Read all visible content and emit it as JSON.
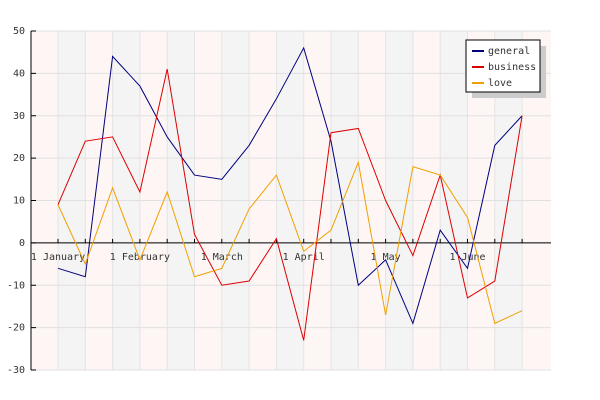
{
  "chart_data": {
    "type": "line",
    "categories": [
      "1 January",
      null,
      null,
      "1 February",
      null,
      null,
      "1 March",
      null,
      null,
      "1 April",
      null,
      null,
      "1 May",
      null,
      null,
      "1 June",
      null,
      null
    ],
    "series": [
      {
        "name": "general",
        "color": "#000080",
        "values": [
          -6,
          -8,
          44,
          37,
          25,
          16,
          15,
          23,
          34,
          46,
          24,
          -10,
          -4,
          -19,
          3,
          -6,
          23,
          30
        ]
      },
      {
        "name": "business",
        "color": "#dd0000",
        "values": [
          9,
          24,
          25,
          12,
          41,
          2,
          -10,
          -9,
          1,
          -23,
          26,
          27,
          10,
          -3,
          16,
          -13,
          -9,
          30
        ]
      },
      {
        "name": "love",
        "color": "#f0a000",
        "values": [
          9,
          -5,
          13,
          -4,
          12,
          -8,
          -6,
          8,
          16,
          -2,
          3,
          19,
          -17,
          18,
          16,
          6,
          -19,
          -16
        ]
      }
    ],
    "ylim": [
      -30,
      50
    ],
    "yticks": [
      -30,
      -20,
      -10,
      0,
      10,
      20,
      30,
      40,
      50
    ],
    "grid": true,
    "legend": "top-right"
  }
}
